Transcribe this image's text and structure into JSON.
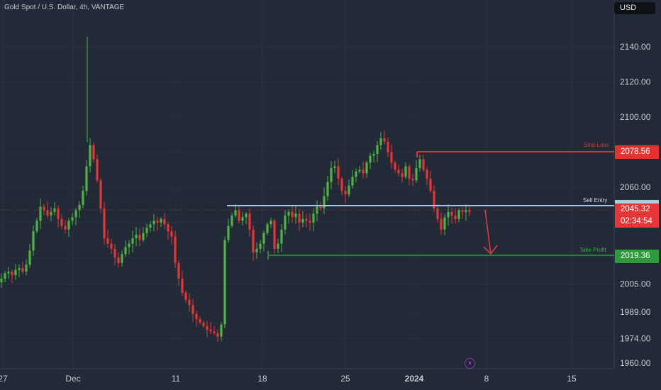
{
  "header": {
    "title": "Gold Spot / U.S. Dollar, 4h, VANTAGE",
    "currency": "USD"
  },
  "colors": {
    "background": "#222a38",
    "up": "#4fb244",
    "down": "#e63536",
    "stop_loss": "#e33232",
    "take_profit": "#2e9a3b",
    "entry": "#a9c6e6",
    "arrow": "#e83a3e"
  },
  "levels": {
    "stop_loss": {
      "label": "Stop Loss",
      "price": "2078.56"
    },
    "entry": {
      "label": "Sell Entry"
    },
    "take_profit": {
      "label": "Take Profit",
      "price": "2019.36"
    },
    "current": {
      "price": "2045.32",
      "countdown": "02:34:54"
    }
  },
  "bolt_icon": "⚡",
  "chart_data": {
    "type": "candlestick",
    "title": "Gold Spot / U.S. Dollar, 4h, VANTAGE",
    "y_ticks": [
      1960.0,
      1974.0,
      1989.0,
      2005.0,
      2019.36,
      2045.32,
      2060.0,
      2078.56,
      2100.0,
      2120.0,
      2140.0
    ],
    "y_tick_labels": [
      "1960.00",
      "1974.00",
      "1989.00",
      "2005.00",
      "2060.00",
      "2100.00",
      "2120.00",
      "2140.00"
    ],
    "x_tick_labels": [
      "27",
      "Dec",
      "11",
      "18",
      "25",
      "2024",
      "8",
      "15"
    ],
    "ylim": [
      1957,
      2157
    ],
    "levels": {
      "stop_loss": 2078.56,
      "sell_entry": 2048.0,
      "take_profit": 2019.36,
      "last": 2045.32
    },
    "candles_close": [
      2008,
      2011,
      2012,
      2010,
      2013,
      2014,
      2012,
      2016,
      2024,
      2035,
      2041,
      2049,
      2047,
      2044,
      2046,
      2048,
      2042,
      2038,
      2036,
      2041,
      2043,
      2047,
      2050,
      2058,
      2072,
      2084,
      2076,
      2064,
      2048,
      2031,
      2028,
      2025,
      2020,
      2017,
      2022,
      2026,
      2028,
      2031,
      2033,
      2030,
      2034,
      2037,
      2039,
      2041,
      2040,
      2042,
      2039,
      2035,
      2032,
      2017,
      2008,
      2000,
      1996,
      1993,
      1988,
      1985,
      1983,
      1981,
      1979,
      1978,
      1977,
      1975,
      1982,
      2030,
      2038,
      2044,
      2047,
      2041,
      2043,
      2045,
      2036,
      2023,
      2025,
      2028,
      2034,
      2039,
      2041,
      2025,
      2028,
      2036,
      2044,
      2046,
      2043,
      2045,
      2040,
      2042,
      2041,
      2040,
      2045,
      2049,
      2048,
      2055,
      2063,
      2071,
      2072,
      2065,
      2058,
      2056,
      2061,
      2066,
      2069,
      2070,
      2068,
      2074,
      2078,
      2079,
      2084,
      2088,
      2086,
      2080,
      2074,
      2070,
      2068,
      2066,
      2072,
      2065,
      2064,
      2071,
      2076,
      2070,
      2065,
      2058,
      2048,
      2042,
      2036,
      2043,
      2046,
      2044,
      2042,
      2047,
      2046,
      2047,
      2046
    ]
  }
}
